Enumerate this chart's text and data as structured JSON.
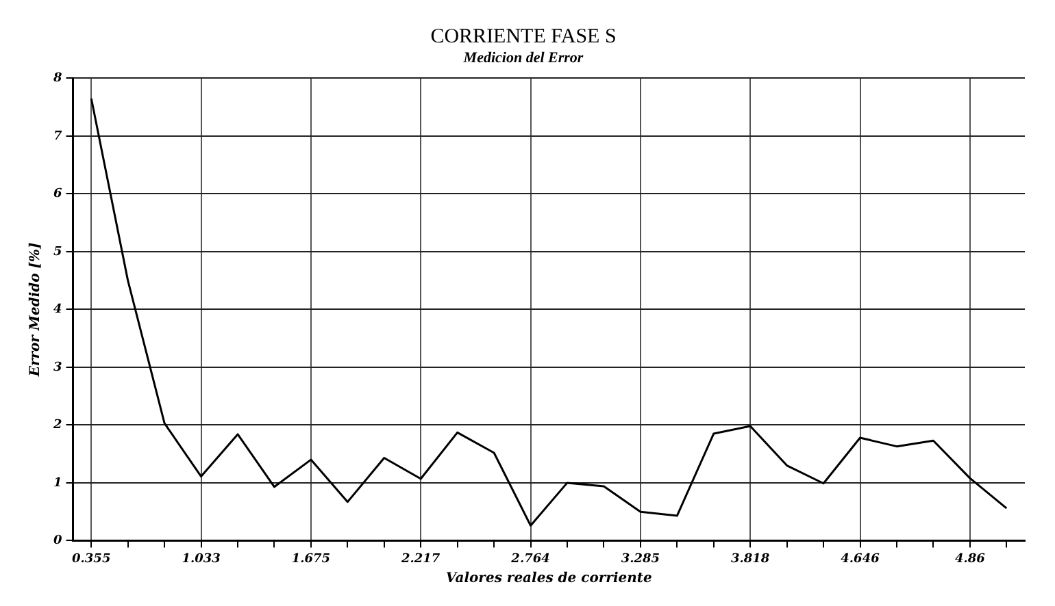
{
  "chart_data": {
    "type": "line",
    "title": "CORRIENTE FASE S",
    "subtitle": "Medicion del Error",
    "xlabel": "Valores reales de corriente",
    "ylabel": "Error Medido [%]",
    "categories": [
      "0.355",
      null,
      null,
      "1.033",
      null,
      null,
      "1.675",
      null,
      null,
      "2.217",
      null,
      null,
      "2.764",
      null,
      null,
      "3.285",
      null,
      null,
      "3.818",
      null,
      null,
      "4.646",
      null,
      null,
      "4.86",
      null
    ],
    "series": [
      {
        "color": "#000000",
        "values": [
          7.65,
          4.5,
          2.03,
          1.11,
          1.84,
          0.93,
          1.4,
          0.67,
          1.43,
          1.07,
          1.87,
          1.52,
          0.26,
          1.0,
          0.94,
          0.5,
          0.43,
          1.85,
          1.98,
          1.3,
          0.99,
          1.78,
          1.63,
          1.73,
          1.08,
          0.56
        ]
      }
    ],
    "ylim": [
      0,
      8
    ],
    "yticks": [
      0,
      1,
      2,
      3,
      4,
      5,
      6,
      7,
      8
    ],
    "grid": true,
    "legend": false,
    "marker": "none",
    "line_style": "solid"
  }
}
